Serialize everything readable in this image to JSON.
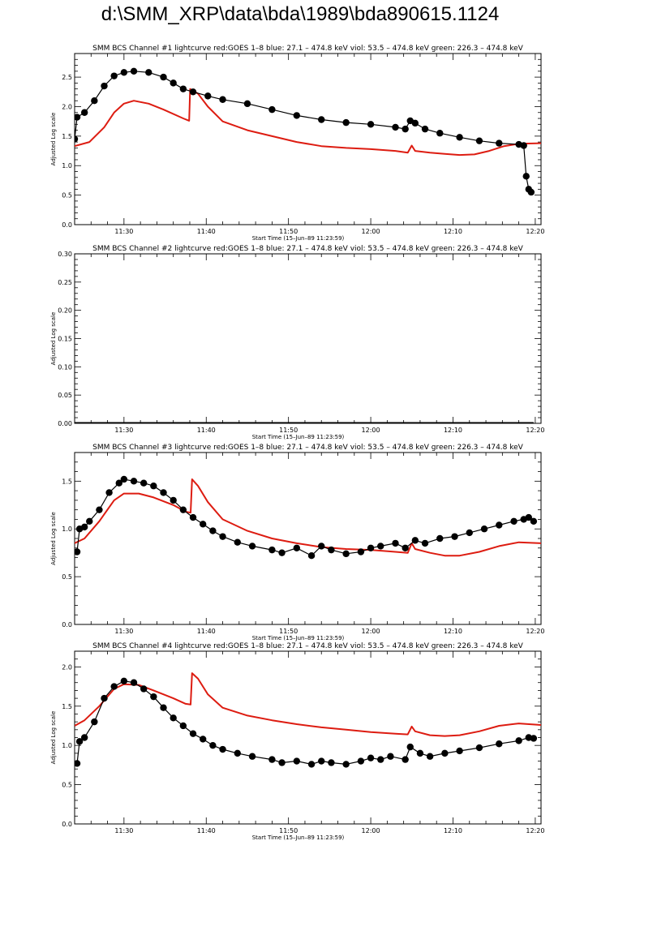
{
  "page": {
    "title": "d:\\SMM_XRP\\data\\bda\\1989\\bda890615.1124"
  },
  "colors": {
    "goes": "#dd1c11",
    "data": "#000000",
    "axis": "#000000"
  },
  "chart_data": [
    {
      "type": "scatter",
      "title": "SMM BCS Channel #1 lightcurve  red:GOES 1–8  blue: 27.1 – 474.8 keV  viol: 53.5 – 474.8 keV  green: 226.3 – 474.8 keV",
      "xlabel": "Start Time (15–Jun–89 11:23:59)",
      "ylabel": "Adjusted Log scale",
      "xlim": [
        11.4,
        12.345
      ],
      "ylim": [
        0,
        2.9
      ],
      "x_ticks": [
        "11:30",
        "11:40",
        "11:50",
        "12:00",
        "12:10",
        "12:20"
      ],
      "y_ticks": [
        "0.0",
        "0.5",
        "1.0",
        "1.5",
        "2.0",
        "2.5"
      ],
      "y_tick_values": [
        0,
        0.5,
        1.0,
        1.5,
        2.0,
        2.5
      ],
      "series": [
        {
          "role": "goes",
          "style": "line",
          "x": [
            11.4,
            11.43,
            11.46,
            11.48,
            11.5,
            11.52,
            11.55,
            11.58,
            11.62,
            11.632,
            11.634,
            11.65,
            11.67,
            11.7,
            11.75,
            11.8,
            11.85,
            11.9,
            11.95,
            12.0,
            12.05,
            12.075,
            12.083,
            12.09,
            12.12,
            12.15,
            12.18,
            12.21,
            12.24,
            12.27,
            12.3,
            12.345
          ],
          "y": [
            1.33,
            1.4,
            1.65,
            1.9,
            2.05,
            2.1,
            2.05,
            1.95,
            1.8,
            1.76,
            2.3,
            2.22,
            2.0,
            1.75,
            1.6,
            1.5,
            1.4,
            1.33,
            1.3,
            1.28,
            1.25,
            1.22,
            1.34,
            1.25,
            1.22,
            1.2,
            1.18,
            1.19,
            1.25,
            1.33,
            1.37,
            1.38
          ]
        },
        {
          "role": "data",
          "style": "points",
          "x": [
            11.4,
            11.405,
            11.42,
            11.44,
            11.46,
            11.48,
            11.5,
            11.52,
            11.55,
            11.58,
            11.6,
            11.62,
            11.64,
            11.67,
            11.7,
            11.75,
            11.8,
            11.85,
            11.9,
            11.95,
            12.0,
            12.05,
            12.07,
            12.08,
            12.09,
            12.11,
            12.14,
            12.18,
            12.22,
            12.26,
            12.3,
            12.31,
            12.315,
            12.32,
            12.325
          ],
          "y": [
            1.45,
            1.82,
            1.9,
            2.1,
            2.35,
            2.52,
            2.58,
            2.6,
            2.58,
            2.5,
            2.4,
            2.3,
            2.25,
            2.18,
            2.12,
            2.05,
            1.95,
            1.85,
            1.78,
            1.73,
            1.7,
            1.65,
            1.62,
            1.76,
            1.72,
            1.62,
            1.55,
            1.48,
            1.42,
            1.38,
            1.36,
            1.34,
            0.82,
            0.6,
            0.55
          ]
        }
      ]
    },
    {
      "type": "scatter",
      "title": "SMM BCS Channel #2 lightcurve  red:GOES 1–8  blue: 27.1 – 474.8 keV  viol: 53.5 – 474.8 keV  green: 226.3 – 474.8 keV",
      "xlabel": "Start Time (15–Jun–89 11:23:59)",
      "ylabel": "Adjusted Log scale",
      "xlim": [
        11.4,
        12.345
      ],
      "ylim": [
        0,
        0.3
      ],
      "x_ticks": [
        "11:30",
        "11:40",
        "11:50",
        "12:00",
        "12:10",
        "12:20"
      ],
      "y_ticks": [
        "0.00",
        "0.05",
        "0.10",
        "0.15",
        "0.20",
        "0.25",
        "0.30"
      ],
      "y_tick_values": [
        0,
        0.05,
        0.1,
        0.15,
        0.2,
        0.25,
        0.3
      ],
      "series": [
        {
          "role": "data",
          "style": "flat",
          "x": [
            11.4,
            12.33
          ],
          "y": [
            0,
            0
          ]
        }
      ]
    },
    {
      "type": "scatter",
      "title": "SMM BCS Channel #3 lightcurve  red:GOES 1–8  blue: 27.1 – 474.8 keV  viol: 53.5 – 474.8 keV  green: 226.3 – 474.8 keV",
      "xlabel": "Start Time (15–Jun–89 11:23:59)",
      "ylabel": "Adjusted Log scale",
      "xlim": [
        11.4,
        12.345
      ],
      "ylim": [
        0,
        1.8
      ],
      "x_ticks": [
        "11:30",
        "11:40",
        "11:50",
        "12:00",
        "12:10",
        "12:20"
      ],
      "y_ticks": [
        "0.0",
        "0.5",
        "1.0",
        "1.5"
      ],
      "y_tick_values": [
        0,
        0.5,
        1.0,
        1.5
      ],
      "series": [
        {
          "role": "goes",
          "style": "line",
          "x": [
            11.4,
            11.42,
            11.45,
            11.48,
            11.5,
            11.53,
            11.56,
            11.6,
            11.625,
            11.635,
            11.638,
            11.65,
            11.67,
            11.7,
            11.75,
            11.8,
            11.85,
            11.9,
            11.95,
            12.0,
            12.05,
            12.075,
            12.083,
            12.09,
            12.12,
            12.15,
            12.18,
            12.22,
            12.26,
            12.3,
            12.345
          ],
          "y": [
            0.85,
            0.9,
            1.08,
            1.3,
            1.37,
            1.37,
            1.33,
            1.25,
            1.18,
            1.17,
            1.52,
            1.45,
            1.28,
            1.1,
            0.98,
            0.9,
            0.85,
            0.81,
            0.79,
            0.78,
            0.76,
            0.75,
            0.85,
            0.79,
            0.75,
            0.72,
            0.72,
            0.76,
            0.82,
            0.86,
            0.85
          ]
        },
        {
          "role": "data",
          "style": "points",
          "x": [
            11.405,
            11.41,
            11.42,
            11.43,
            11.45,
            11.47,
            11.49,
            11.5,
            11.52,
            11.54,
            11.56,
            11.58,
            11.6,
            11.62,
            11.64,
            11.66,
            11.68,
            11.7,
            11.73,
            11.76,
            11.8,
            11.82,
            11.85,
            11.88,
            11.9,
            11.92,
            11.95,
            11.98,
            12.0,
            12.02,
            12.05,
            12.07,
            12.09,
            12.11,
            12.14,
            12.17,
            12.2,
            12.23,
            12.26,
            12.29,
            12.31,
            12.32,
            12.33
          ],
          "y": [
            0.76,
            1.0,
            1.02,
            1.08,
            1.2,
            1.38,
            1.48,
            1.52,
            1.5,
            1.48,
            1.45,
            1.38,
            1.3,
            1.2,
            1.12,
            1.05,
            0.98,
            0.92,
            0.86,
            0.82,
            0.78,
            0.75,
            0.8,
            0.72,
            0.82,
            0.78,
            0.74,
            0.76,
            0.8,
            0.82,
            0.85,
            0.8,
            0.88,
            0.85,
            0.9,
            0.92,
            0.96,
            1.0,
            1.04,
            1.08,
            1.1,
            1.12,
            1.08
          ]
        }
      ]
    },
    {
      "type": "scatter",
      "title": "SMM BCS Channel #4 lightcurve  red:GOES 1–8  blue: 27.1 – 474.8 keV  viol: 53.5 – 474.8 keV  green: 226.3 – 474.8 keV",
      "xlabel": "Start Time (15–Jun–89 11:23:59)",
      "ylabel": "Adjusted Log scale",
      "xlim": [
        11.4,
        12.345
      ],
      "ylim": [
        0,
        2.2
      ],
      "x_ticks": [
        "11:30",
        "11:40",
        "11:50",
        "12:00",
        "12:10",
        "12:20"
      ],
      "y_ticks": [
        "0.0",
        "0.5",
        "1.0",
        "1.5",
        "2.0"
      ],
      "y_tick_values": [
        0,
        0.5,
        1.0,
        1.5,
        2.0
      ],
      "series": [
        {
          "role": "goes",
          "style": "line",
          "x": [
            11.4,
            11.42,
            11.45,
            11.48,
            11.5,
            11.53,
            11.56,
            11.6,
            11.625,
            11.635,
            11.638,
            11.65,
            11.67,
            11.7,
            11.75,
            11.8,
            11.85,
            11.9,
            11.95,
            12.0,
            12.05,
            12.075,
            12.083,
            12.09,
            12.12,
            12.15,
            12.18,
            12.22,
            12.26,
            12.3,
            12.345
          ],
          "y": [
            1.25,
            1.32,
            1.5,
            1.72,
            1.78,
            1.77,
            1.7,
            1.6,
            1.53,
            1.52,
            1.92,
            1.85,
            1.65,
            1.48,
            1.38,
            1.32,
            1.27,
            1.23,
            1.2,
            1.17,
            1.15,
            1.14,
            1.24,
            1.18,
            1.13,
            1.12,
            1.13,
            1.18,
            1.25,
            1.28,
            1.26
          ]
        },
        {
          "role": "data",
          "style": "points",
          "x": [
            11.405,
            11.41,
            11.42,
            11.44,
            11.46,
            11.48,
            11.5,
            11.52,
            11.54,
            11.56,
            11.58,
            11.6,
            11.62,
            11.64,
            11.66,
            11.68,
            11.7,
            11.73,
            11.76,
            11.8,
            11.82,
            11.85,
            11.88,
            11.9,
            11.92,
            11.95,
            11.98,
            12.0,
            12.02,
            12.04,
            12.07,
            12.08,
            12.1,
            12.12,
            12.15,
            12.18,
            12.22,
            12.26,
            12.3,
            12.32,
            12.33
          ],
          "y": [
            0.77,
            1.05,
            1.1,
            1.3,
            1.6,
            1.75,
            1.82,
            1.8,
            1.72,
            1.62,
            1.48,
            1.35,
            1.25,
            1.15,
            1.08,
            1.0,
            0.95,
            0.9,
            0.86,
            0.82,
            0.78,
            0.8,
            0.76,
            0.8,
            0.78,
            0.76,
            0.8,
            0.84,
            0.82,
            0.86,
            0.82,
            0.98,
            0.9,
            0.86,
            0.9,
            0.93,
            0.97,
            1.02,
            1.06,
            1.1,
            1.09
          ]
        }
      ]
    }
  ]
}
